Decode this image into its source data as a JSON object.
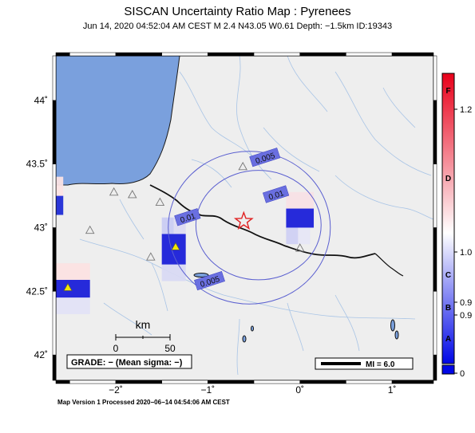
{
  "header": {
    "title": "SISCAN Uncertainty Ratio Map : Pyrenees",
    "subtitle": "Jun 14, 2020 04:52:04 AM CEST   M 2.4   N43.05 W0.61   Depth: −1.5km   ID:19343"
  },
  "footer": {
    "text": "Map Version 1 Processed 2020−06−14 04:54:06 AM CEST"
  },
  "map": {
    "lon_range": [
      -2.65,
      1.45
    ],
    "lat_range": [
      41.8,
      44.35
    ],
    "lat_ticks": [
      {
        "value": 44,
        "label": "44˚"
      },
      {
        "value": 43.5,
        "label": "43.5˚"
      },
      {
        "value": 43,
        "label": "43˚"
      },
      {
        "value": 42.5,
        "label": "42.5˚"
      },
      {
        "value": 42,
        "label": "42˚"
      }
    ],
    "lon_ticks": [
      {
        "value": -2,
        "label": "−2˚"
      },
      {
        "value": -1,
        "label": "−1˚"
      },
      {
        "value": 0,
        "label": "0˚"
      },
      {
        "value": 1,
        "label": "1˚"
      }
    ],
    "epicenter": {
      "lon": -0.61,
      "lat": 43.05
    },
    "contours": [
      {
        "label": "0.005",
        "cx": -0.55,
        "cy": 43.0,
        "rx": 0.88,
        "ry": 0.6
      },
      {
        "label": "0.01",
        "cx": -0.45,
        "cy": 43.02,
        "rx": 0.68,
        "ry": 0.43
      }
    ],
    "contour_labels": [
      {
        "text": "0.005",
        "lon": -0.38,
        "lat": 43.55
      },
      {
        "text": "0.01",
        "lon": -0.26,
        "lat": 43.26
      },
      {
        "text": "0.01",
        "lon": -1.22,
        "lat": 43.08
      },
      {
        "text": "0.005",
        "lon": -0.98,
        "lat": 42.58
      }
    ],
    "stations_triangle": [
      {
        "lon": -2.02,
        "lat": 43.28
      },
      {
        "lon": -1.82,
        "lat": 43.26
      },
      {
        "lon": -1.52,
        "lat": 43.2
      },
      {
        "lon": -2.28,
        "lat": 42.98
      },
      {
        "lon": -1.62,
        "lat": 42.77
      },
      {
        "lon": -0.62,
        "lat": 43.48
      },
      {
        "lon": 0.0,
        "lat": 42.84
      }
    ],
    "stations_filled": [
      {
        "lon": -1.35,
        "lat": 42.85
      },
      {
        "lon": -2.52,
        "lat": 42.53
      }
    ],
    "grid_cells": [
      {
        "lon": -2.65,
        "lat": 43.1,
        "w": 0.08,
        "h": 0.15,
        "color": "#1f2bd6"
      },
      {
        "lon": -2.65,
        "lat": 43.25,
        "w": 0.08,
        "h": 0.15,
        "color": "#fbe3e3"
      },
      {
        "lon": -1.5,
        "lat": 42.95,
        "w": 0.13,
        "h": 0.13,
        "color": "#c9cbf2"
      },
      {
        "lon": -1.37,
        "lat": 42.95,
        "w": 0.13,
        "h": 0.13,
        "color": "#dcdaf1"
      },
      {
        "lon": -1.5,
        "lat": 42.71,
        "w": 0.26,
        "h": 0.24,
        "color": "#1a1fd8"
      },
      {
        "lon": -1.5,
        "lat": 42.58,
        "w": 0.26,
        "h": 0.13,
        "color": "#d8d9f3"
      },
      {
        "lon": -0.15,
        "lat": 43.0,
        "w": 0.3,
        "h": 0.15,
        "color": "#1a1fd8"
      },
      {
        "lon": -0.15,
        "lat": 43.15,
        "w": 0.3,
        "h": 0.13,
        "color": "#f7e0e5"
      },
      {
        "lon": -0.15,
        "lat": 42.87,
        "w": 0.13,
        "h": 0.13,
        "color": "#cfd0f3"
      },
      {
        "lon": -0.02,
        "lat": 42.87,
        "w": 0.13,
        "h": 0.13,
        "color": "#e6e6f6"
      },
      {
        "lon": -2.65,
        "lat": 42.45,
        "w": 0.37,
        "h": 0.14,
        "color": "#1a1fd8"
      },
      {
        "lon": -2.65,
        "lat": 42.59,
        "w": 0.37,
        "h": 0.13,
        "color": "#fbe1e1"
      },
      {
        "lon": -2.65,
        "lat": 42.32,
        "w": 0.37,
        "h": 0.13,
        "color": "#e2e2f6"
      }
    ],
    "scale": {
      "unit": "km",
      "labels": [
        "0",
        "50"
      ]
    },
    "grade_box": "GRADE: − (Mean sigma: −)",
    "mi_box": "MI = 6.0"
  },
  "colorbar": {
    "grade_labels": [
      "F",
      "D",
      "C",
      "B",
      "A"
    ],
    "value_labels": [
      "1.2",
      "1.0",
      "0.9",
      "0.9",
      "0"
    ],
    "colors": [
      "#e8001a",
      "#ffffff",
      "#0007e6"
    ]
  }
}
